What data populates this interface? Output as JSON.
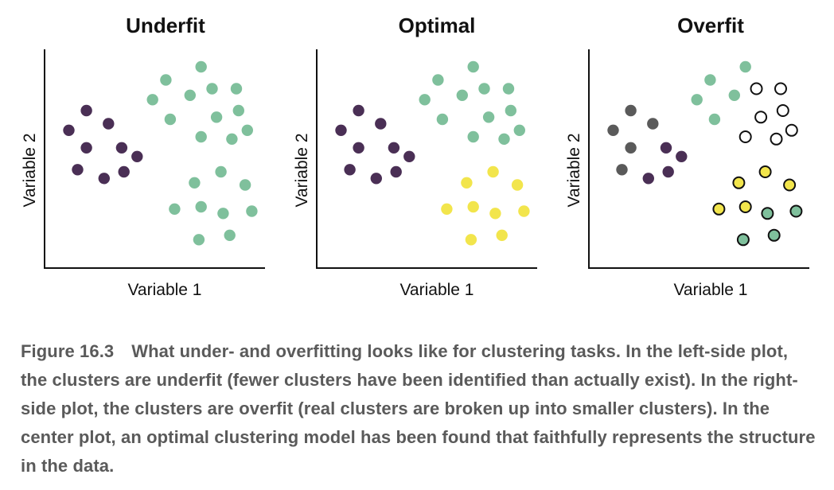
{
  "figure": {
    "caption_label": "Figure 16.3",
    "caption_text": "What under- and overfitting looks like for clustering tasks. In the left-side plot, the clusters are underfit (fewer clusters have been identified than actually exist). In the right-side plot, the clusters are overfit (real clusters are broken up into smaller clusters). In the center plot, an optimal clustering model has been found that faithfully represents the structure in the data."
  },
  "colors": {
    "purple": "#4a2f55",
    "green": "#7fc09c",
    "yellow": "#f2e54c",
    "gray": "#5a5a5a",
    "white": "#ffffff",
    "axis": "#111111"
  },
  "chart_data": [
    {
      "type": "scatter",
      "title": "Underfit",
      "xlabel": "Variable 1",
      "ylabel": "Variable 2",
      "xlim": [
        0,
        100
      ],
      "ylim": [
        0,
        100
      ],
      "grid": false,
      "series": [
        {
          "color": "purple",
          "outlined": false,
          "points": [
            [
              19,
              72
            ],
            [
              29,
              66
            ],
            [
              11,
              63
            ],
            [
              19,
              55
            ],
            [
              35,
              55
            ],
            [
              42,
              51
            ],
            [
              15,
              45
            ],
            [
              36,
              44
            ],
            [
              27,
              41
            ]
          ]
        },
        {
          "color": "green",
          "outlined": false,
          "points": [
            [
              71,
              92
            ],
            [
              55,
              86
            ],
            [
              76,
              82
            ],
            [
              87,
              82
            ],
            [
              49,
              77
            ],
            [
              66,
              79
            ],
            [
              88,
              72
            ],
            [
              57,
              68
            ],
            [
              78,
              69
            ],
            [
              92,
              63
            ],
            [
              71,
              60
            ],
            [
              85,
              59
            ],
            [
              80,
              44
            ],
            [
              68,
              39
            ],
            [
              91,
              38
            ],
            [
              59,
              27
            ],
            [
              71,
              28
            ],
            [
              81,
              25
            ],
            [
              94,
              26
            ],
            [
              70,
              13
            ],
            [
              84,
              15
            ]
          ]
        }
      ]
    },
    {
      "type": "scatter",
      "title": "Optimal",
      "xlabel": "Variable 1",
      "ylabel": "Variable 2",
      "xlim": [
        0,
        100
      ],
      "ylim": [
        0,
        100
      ],
      "grid": false,
      "series": [
        {
          "color": "purple",
          "outlined": false,
          "points": [
            [
              19,
              72
            ],
            [
              29,
              66
            ],
            [
              11,
              63
            ],
            [
              19,
              55
            ],
            [
              35,
              55
            ],
            [
              42,
              51
            ],
            [
              15,
              45
            ],
            [
              36,
              44
            ],
            [
              27,
              41
            ]
          ]
        },
        {
          "color": "green",
          "outlined": false,
          "points": [
            [
              71,
              92
            ],
            [
              55,
              86
            ],
            [
              76,
              82
            ],
            [
              87,
              82
            ],
            [
              49,
              77
            ],
            [
              66,
              79
            ],
            [
              88,
              72
            ],
            [
              57,
              68
            ],
            [
              78,
              69
            ],
            [
              92,
              63
            ],
            [
              71,
              60
            ],
            [
              85,
              59
            ]
          ]
        },
        {
          "color": "yellow",
          "outlined": false,
          "points": [
            [
              80,
              44
            ],
            [
              68,
              39
            ],
            [
              91,
              38
            ],
            [
              59,
              27
            ],
            [
              71,
              28
            ],
            [
              81,
              25
            ],
            [
              94,
              26
            ],
            [
              70,
              13
            ],
            [
              84,
              15
            ]
          ]
        }
      ]
    },
    {
      "type": "scatter",
      "title": "Overfit",
      "xlabel": "Variable 1",
      "ylabel": "Variable 2",
      "xlim": [
        0,
        100
      ],
      "ylim": [
        0,
        100
      ],
      "grid": false,
      "series": [
        {
          "color": "gray",
          "outlined": false,
          "points": [
            [
              19,
              72
            ],
            [
              29,
              66
            ],
            [
              11,
              63
            ],
            [
              19,
              55
            ],
            [
              15,
              45
            ]
          ]
        },
        {
          "color": "purple",
          "outlined": false,
          "points": [
            [
              35,
              55
            ],
            [
              42,
              51
            ],
            [
              36,
              44
            ],
            [
              27,
              41
            ]
          ]
        },
        {
          "color": "green",
          "outlined": false,
          "points": [
            [
              71,
              92
            ],
            [
              55,
              86
            ],
            [
              49,
              77
            ],
            [
              66,
              79
            ],
            [
              57,
              68
            ]
          ]
        },
        {
          "color": "white",
          "outlined": true,
          "points": [
            [
              76,
              82
            ],
            [
              87,
              82
            ],
            [
              88,
              72
            ],
            [
              78,
              69
            ],
            [
              92,
              63
            ],
            [
              71,
              60
            ],
            [
              85,
              59
            ]
          ]
        },
        {
          "color": "yellow",
          "outlined": true,
          "points": [
            [
              80,
              44
            ],
            [
              68,
              39
            ],
            [
              91,
              38
            ],
            [
              59,
              27
            ],
            [
              71,
              28
            ]
          ]
        },
        {
          "color": "green",
          "outlined": true,
          "points": [
            [
              81,
              25
            ],
            [
              94,
              26
            ],
            [
              70,
              13
            ],
            [
              84,
              15
            ]
          ]
        }
      ]
    }
  ]
}
